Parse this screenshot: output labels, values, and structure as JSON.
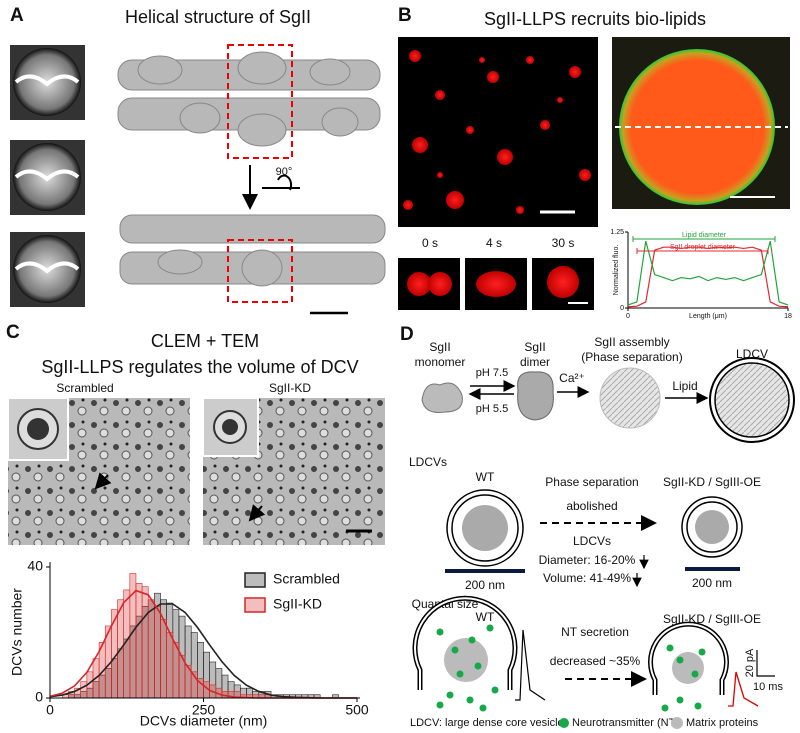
{
  "panel_a": {
    "label": "A",
    "title": "Helical structure of SgII",
    "rotation": "90°"
  },
  "panel_b": {
    "label": "B",
    "title": "SgII-LLPS recruits bio-lipids",
    "time_labels": [
      "0 s",
      "4 s",
      "30 s"
    ]
  },
  "panel_c": {
    "label": "C",
    "title": "CLEM + TEM",
    "subtitle": "SgII-LLPS regulates the volume of DCV",
    "image_labels": [
      "Scrambled",
      "SgII-KD"
    ]
  },
  "panel_d": {
    "label": "D",
    "stages": [
      [
        "SgII",
        "monomer"
      ],
      [
        "SgII",
        "dimer"
      ],
      [
        "SgII assembly",
        "(Phase separation)"
      ],
      [
        "LDCV"
      ]
    ],
    "ph": [
      "pH 7.5",
      "pH 5.5"
    ],
    "calcium": "Ca²⁺",
    "lipid": "Lipid",
    "ldcv_heading": "LDCVs",
    "wt": "WT",
    "mutant": "SgII-KD / SgIII-OE",
    "phase_text": [
      "Phase separation",
      "abolished"
    ],
    "ldcv_sub": "LDCVs",
    "changes": [
      "Diameter: 16-20%",
      "Volume: 41-49%"
    ],
    "scale": [
      "200 nm",
      "200 nm"
    ],
    "quantal": "Quantal size",
    "wt2": "WT",
    "nt_text": [
      "NT secretion",
      "decreased ~35%"
    ],
    "mutant2": "SgII-KD / SgIII-OE",
    "scale_bar": [
      "20 pA",
      "10 ms"
    ],
    "legend": [
      "LDCV: large dense core vesicle",
      "Neurotransmitter (NT)",
      "Matrix proteins"
    ]
  },
  "chart_data": [
    {
      "type": "line",
      "annotations": [
        "Lipid diameter",
        "SgII droplet diameter"
      ],
      "y_label": "Normalized fluo.",
      "x_label": "Length (μm)",
      "x": [
        0,
        1,
        2,
        3,
        4,
        5,
        6,
        7,
        8,
        9,
        10,
        11,
        12,
        13,
        14,
        15,
        16,
        17,
        18
      ],
      "series": [
        {
          "color": "#e0282e",
          "values": [
            0.02,
            0.03,
            0.1,
            0.95,
            1.0,
            1.0,
            0.98,
            1.0,
            1.0,
            0.98,
            1.0,
            0.99,
            1.0,
            0.98,
            1.0,
            0.95,
            0.1,
            0.03,
            0.02
          ]
        },
        {
          "color": "#22a53a",
          "values": [
            0.05,
            0.1,
            1.1,
            0.55,
            0.5,
            0.45,
            0.5,
            0.48,
            0.52,
            0.45,
            0.5,
            0.47,
            0.5,
            0.45,
            0.5,
            0.55,
            1.1,
            0.1,
            0.05
          ]
        }
      ],
      "xlim": [
        0,
        18
      ],
      "ylim": [
        0,
        1.25
      ],
      "xticks": [
        0,
        18
      ],
      "yticks": [
        0,
        1.25
      ]
    },
    {
      "type": "histogram",
      "x_label": "DCVs diameter (nm)",
      "y_label": "DCVs number",
      "bins": [
        0,
        10,
        20,
        30,
        40,
        50,
        60,
        70,
        80,
        90,
        100,
        110,
        120,
        130,
        140,
        150,
        160,
        170,
        180,
        190,
        200,
        210,
        220,
        230,
        240,
        250,
        260,
        270,
        280,
        290,
        300,
        310,
        320,
        330,
        340,
        350,
        360,
        370,
        380,
        390,
        400,
        410,
        420,
        430,
        440,
        450,
        460,
        470,
        480,
        490,
        500
      ],
      "fit_x": [
        0,
        20,
        40,
        60,
        80,
        100,
        120,
        140,
        160,
        180,
        200,
        220,
        240,
        260,
        280,
        300,
        320,
        340,
        360,
        380,
        400,
        420,
        440,
        460,
        480,
        500
      ],
      "series": [
        {
          "name": "Scrambled",
          "color": "#222222",
          "values": [
            0,
            0,
            0,
            1,
            1,
            2,
            3,
            5,
            7,
            9,
            12,
            15,
            18,
            22,
            25,
            28,
            30,
            32,
            30,
            29,
            27,
            25,
            22,
            20,
            17,
            14,
            11,
            9,
            7,
            5,
            4,
            3,
            3,
            2,
            2,
            2,
            1,
            1,
            1,
            1,
            1,
            1,
            1,
            1,
            0,
            0,
            1,
            0,
            0,
            0
          ],
          "fit": [
            0.4,
            0.9,
            2.0,
            3.9,
            6.9,
            11.1,
            16.2,
            21.6,
            26.1,
            28.7,
            28.7,
            26.1,
            21.6,
            16.2,
            11.1,
            6.9,
            3.9,
            2.0,
            0.9,
            0.4,
            0.2,
            0.1,
            0,
            0,
            0,
            0
          ]
        },
        {
          "name": "SgII-KD",
          "color": "#d62728",
          "values": [
            0,
            0,
            1,
            2,
            3,
            5,
            8,
            12,
            17,
            22,
            27,
            30,
            33,
            38,
            35,
            34,
            30,
            28,
            24,
            20,
            17,
            13,
            10,
            8,
            6,
            5,
            4,
            3,
            2,
            2,
            2,
            1,
            1,
            1,
            1,
            1,
            0,
            0,
            0,
            0,
            0,
            0,
            0,
            0,
            0,
            0,
            0,
            0,
            0,
            0
          ],
          "fit": [
            0.5,
            1.5,
            3.7,
            7.8,
            14.2,
            22,
            29.1,
            32.8,
            31.5,
            25.8,
            18,
            10.7,
            5.4,
            2.3,
            0.9,
            0.3,
            0.1,
            0,
            0,
            0,
            0,
            0,
            0,
            0,
            0,
            0
          ]
        }
      ],
      "xlim": [
        0,
        500
      ],
      "ylim": [
        0,
        40
      ],
      "xticks": [
        0,
        250,
        500
      ],
      "yticks": [
        0,
        40
      ],
      "legend": "top-right"
    }
  ]
}
